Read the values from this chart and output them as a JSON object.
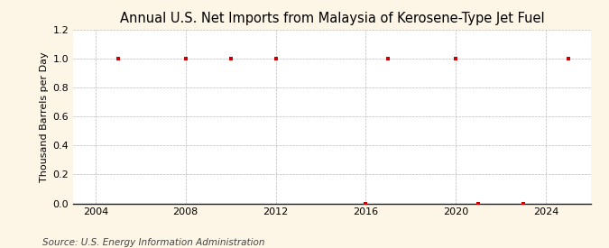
{
  "title": "Annual U.S. Net Imports from Malaysia of Kerosene-Type Jet Fuel",
  "ylabel": "Thousand Barrels per Day",
  "source": "Source: U.S. Energy Information Administration",
  "years": [
    2005,
    2008,
    2010,
    2012,
    2016,
    2017,
    2020,
    2021,
    2023,
    2025
  ],
  "values": [
    1.0,
    1.0,
    1.0,
    1.0,
    0.0,
    1.0,
    1.0,
    0.0,
    0.0,
    1.0
  ],
  "xlim": [
    2003,
    2026
  ],
  "ylim": [
    0.0,
    1.2
  ],
  "yticks": [
    0.0,
    0.2,
    0.4,
    0.6,
    0.8,
    1.0,
    1.2
  ],
  "xticks": [
    2004,
    2008,
    2012,
    2016,
    2020,
    2024
  ],
  "marker_color": "#cc0000",
  "marker_size": 3.5,
  "bg_color": "#fdf5e6",
  "plot_bg_color": "#ffffff",
  "grid_color": "#bbbbbb",
  "title_fontsize": 10.5,
  "label_fontsize": 8,
  "tick_fontsize": 8,
  "source_fontsize": 7.5
}
